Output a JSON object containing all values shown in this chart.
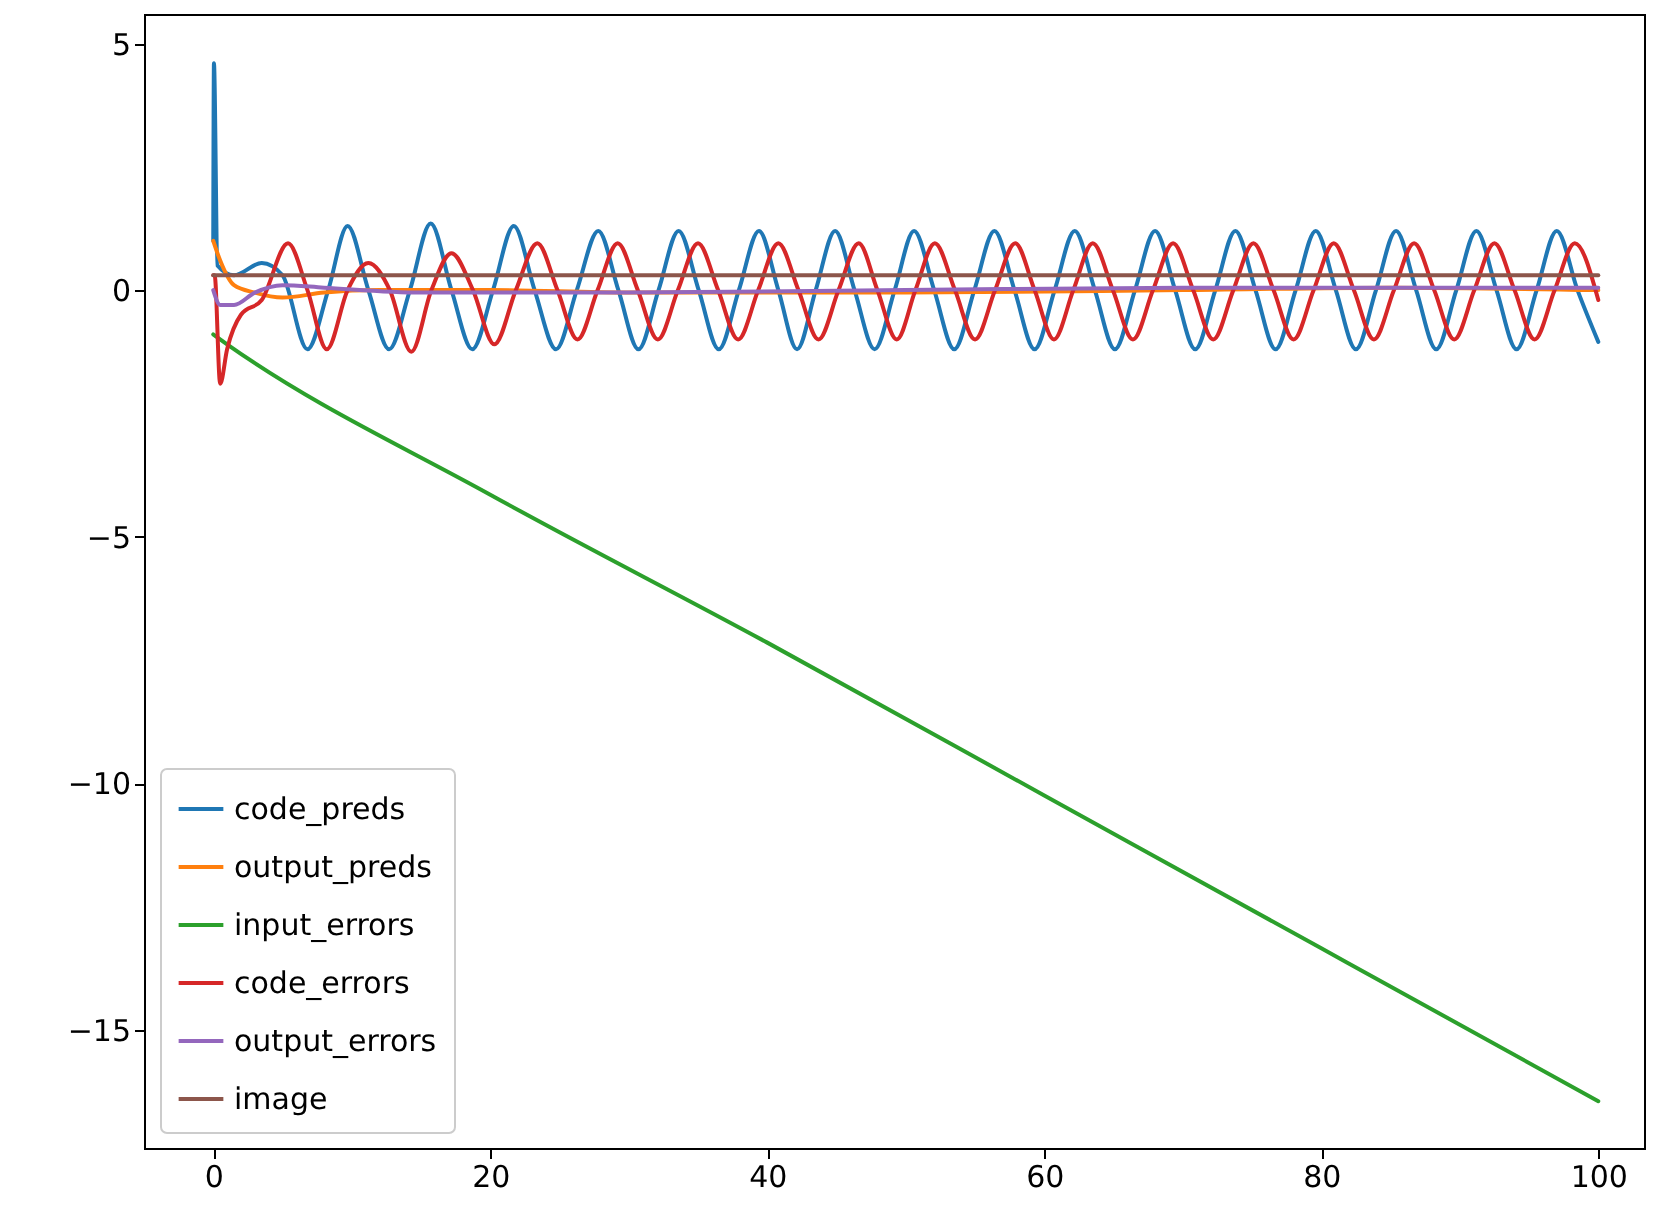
{
  "chart_data": {
    "type": "line",
    "xlim": [
      -5,
      103.3
    ],
    "ylim": [
      -17.4,
      5.6
    ],
    "xticks": [
      0,
      20,
      40,
      60,
      80,
      100
    ],
    "yticks": [
      -15,
      -10,
      -5,
      0,
      5
    ],
    "legend": "bottom left",
    "grid": false,
    "marker": "none",
    "line_style": "solid",
    "series": [
      {
        "name": "code_preds",
        "color": "#1f77b4",
        "x": [
          0,
          0.05,
          0.3,
          1.5,
          3.5,
          5,
          6.8,
          8.3,
          9.7,
          11.2,
          12.7,
          14.2,
          15.7,
          17.2,
          18.7,
          20.2,
          21.7,
          23.2,
          24.75,
          26.25,
          27.8,
          29.25,
          30.7,
          32.15,
          33.6,
          35.05,
          36.5,
          37.95,
          39.4,
          40.8,
          42.15,
          43.5,
          44.9,
          46.3,
          47.75,
          49.2,
          50.6,
          52.05,
          53.5,
          54.95,
          56.4,
          57.85,
          59.3,
          60.75,
          62.2,
          63.65,
          65.1,
          66.55,
          68.0,
          69.45,
          70.9,
          72.35,
          73.8,
          75.25,
          76.7,
          78.15,
          79.6,
          81.05,
          82.5,
          83.95,
          85.4,
          86.85,
          88.3,
          89.75,
          91.2,
          92.65,
          94.1,
          95.55,
          97.0,
          98.5,
          100
        ],
        "values": [
          1.0,
          4.6,
          0.5,
          0.3,
          0.55,
          0.3,
          -1.2,
          0,
          1.3,
          0,
          -1.2,
          0,
          1.35,
          0,
          -1.2,
          0,
          1.3,
          0,
          -1.2,
          0,
          1.2,
          0,
          -1.2,
          0,
          1.2,
          0,
          -1.2,
          0,
          1.2,
          0,
          -1.2,
          0,
          1.2,
          0,
          -1.2,
          0,
          1.2,
          0,
          -1.2,
          0,
          1.2,
          0,
          -1.2,
          0,
          1.2,
          0,
          -1.2,
          0,
          1.2,
          0,
          -1.2,
          0,
          1.2,
          0,
          -1.2,
          0,
          1.2,
          0,
          -1.2,
          0,
          1.2,
          0,
          -1.2,
          0,
          1.2,
          0,
          -1.2,
          0,
          1.2,
          0,
          -1.05
        ]
      },
      {
        "name": "output_preds",
        "color": "#ff7f0e",
        "x": [
          0,
          0.5,
          1.5,
          3,
          5,
          8,
          12,
          20,
          30,
          50,
          70,
          85,
          100
        ],
        "values": [
          1.0,
          0.6,
          0.1,
          -0.05,
          -0.15,
          -0.05,
          0.0,
          0.0,
          -0.05,
          -0.05,
          0.0,
          0.05,
          0.0
        ]
      },
      {
        "name": "input_errors",
        "color": "#2ca02c",
        "x": [
          0,
          1,
          20,
          40,
          60,
          80,
          100
        ],
        "values": [
          -0.9,
          -1.1,
          -4.15,
          -7.15,
          -10.25,
          -13.35,
          -16.45
        ]
      },
      {
        "name": "code_errors",
        "color": "#d62728",
        "x": [
          0,
          0.1,
          0.5,
          1,
          2,
          3.5,
          5.4,
          6.8,
          8.2,
          9.7,
          11.2,
          12.75,
          14.3,
          15.75,
          17.2,
          18.75,
          20.3,
          21.85,
          23.4,
          24.85,
          26.3,
          27.75,
          29.2,
          30.65,
          32.1,
          33.55,
          35,
          36.45,
          37.9,
          39.35,
          40.8,
          42.25,
          43.7,
          45.15,
          46.6,
          47.95,
          49.35,
          50.7,
          52.1,
          53.55,
          55,
          56.45,
          57.9,
          59.3,
          60.7,
          62.1,
          63.5,
          64.95,
          66.4,
          67.85,
          69.3,
          70.75,
          72.2,
          73.65,
          75.1,
          76.55,
          78,
          79.45,
          80.9,
          82.35,
          83.8,
          85.25,
          86.7,
          88.15,
          89.6,
          91.05,
          92.5,
          93.95,
          95.4,
          96.85,
          98.3,
          100
        ],
        "values": [
          0.3,
          0.3,
          -1.9,
          -1.2,
          -0.5,
          -0.2,
          0.95,
          0,
          -1.2,
          0,
          0.55,
          0,
          -1.25,
          0,
          0.75,
          0,
          -1.1,
          0,
          0.95,
          0,
          -1.0,
          0,
          0.95,
          0,
          -1.0,
          0,
          0.95,
          0,
          -1.0,
          0,
          0.95,
          0,
          -1.0,
          0,
          0.95,
          0,
          -1.0,
          0,
          0.95,
          0,
          -1.0,
          0,
          0.95,
          0,
          -1.0,
          0,
          0.95,
          0,
          -1.0,
          0,
          0.95,
          0,
          -1.0,
          0,
          0.95,
          0,
          -1.0,
          0,
          0.95,
          0,
          -1.0,
          0,
          0.95,
          0,
          -1.0,
          0,
          0.95,
          0,
          -1.0,
          0,
          0.95,
          -0.2
        ]
      },
      {
        "name": "output_errors",
        "color": "#9467bd",
        "x": [
          0,
          0.5,
          1.5,
          3,
          5,
          8,
          15,
          30,
          50,
          70,
          100
        ],
        "values": [
          0.0,
          -0.3,
          -0.3,
          -0.05,
          0.1,
          0.05,
          -0.05,
          -0.05,
          0.0,
          0.05,
          0.05
        ]
      },
      {
        "name": "image",
        "color": "#8c564b",
        "x": [
          0,
          100
        ],
        "values": [
          0.3,
          0.3
        ]
      }
    ]
  }
}
